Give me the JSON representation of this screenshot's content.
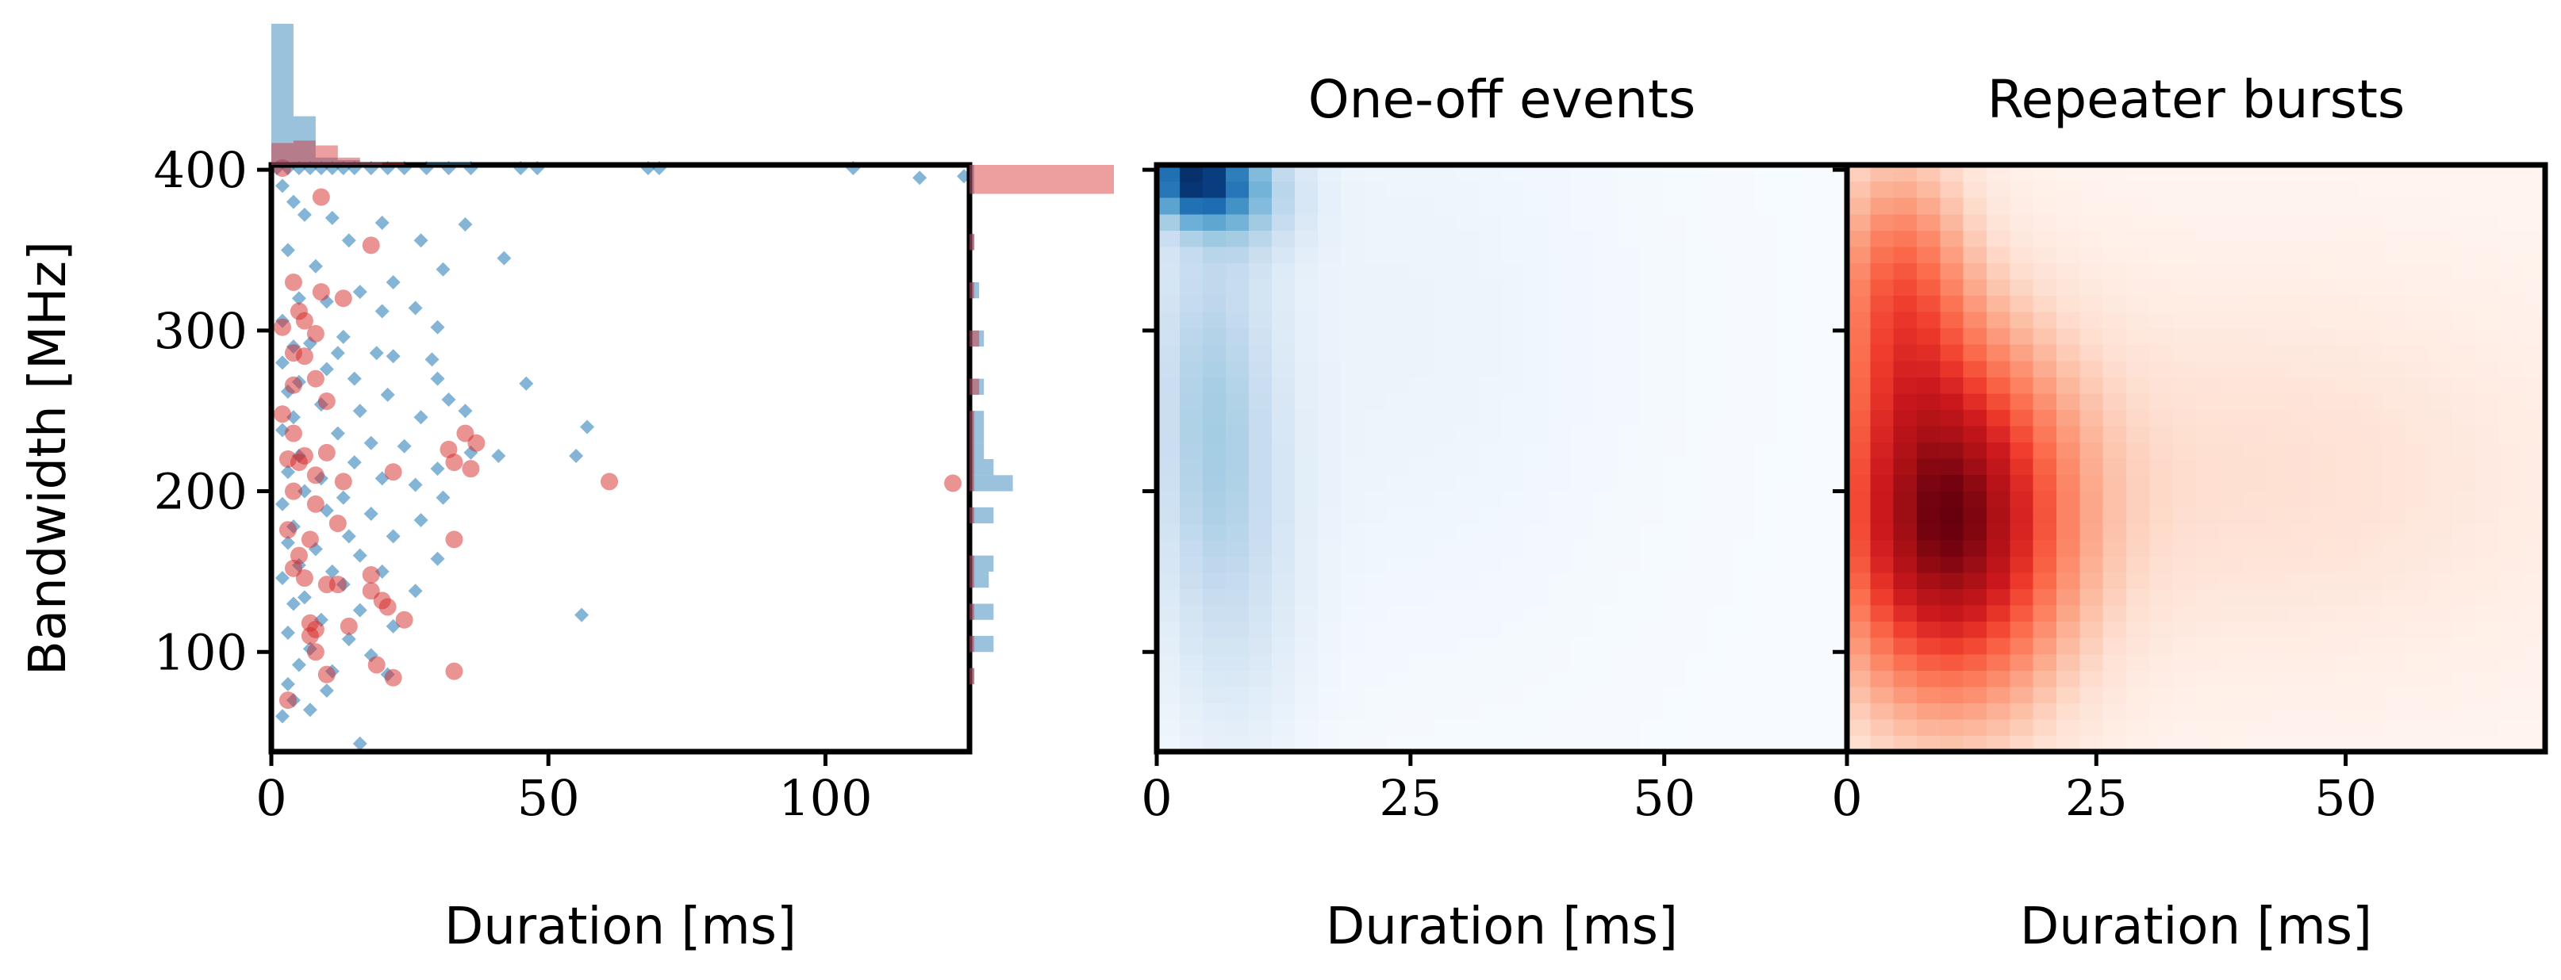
{
  "chart_data": [
    {
      "type": "scatter",
      "xlabel": "Duration [ms]",
      "ylabel": "Bandwidth [MHz]",
      "xlim": [
        0,
        126
      ],
      "ylim": [
        38,
        403
      ],
      "xticks": [
        0,
        50,
        100
      ],
      "yticks": [
        100,
        200,
        300,
        400
      ],
      "colors": {
        "one_off": "#1f77b4",
        "repeater": "#d62728"
      },
      "series": [
        {
          "marker": "diamond",
          "color": "#1f77b4",
          "points": [
            [
              1,
              401
            ],
            [
              3,
              401
            ],
            [
              5,
              401
            ],
            [
              7,
              401
            ],
            [
              9,
              401
            ],
            [
              11,
              401
            ],
            [
              13,
              401
            ],
            [
              15,
              401
            ],
            [
              18,
              401
            ],
            [
              21,
              401
            ],
            [
              24,
              401
            ],
            [
              28,
              401
            ],
            [
              32,
              401
            ],
            [
              36,
              401
            ],
            [
              45,
              401
            ],
            [
              48,
              401
            ],
            [
              68,
              401
            ],
            [
              70,
              401
            ],
            [
              105,
              401
            ],
            [
              117,
              395
            ],
            [
              125,
              396
            ],
            [
              2,
              390
            ],
            [
              4,
              380
            ],
            [
              6,
              372
            ],
            [
              11,
              370
            ],
            [
              20,
              367
            ],
            [
              35,
              366
            ],
            [
              27,
              356
            ],
            [
              14,
              356
            ],
            [
              3,
              350
            ],
            [
              42,
              345
            ],
            [
              8,
              340
            ],
            [
              31,
              338
            ],
            [
              22,
              330
            ],
            [
              16,
              324
            ],
            [
              5,
              320
            ],
            [
              10,
              318
            ],
            [
              26,
              314
            ],
            [
              20,
              312
            ],
            [
              2,
              306
            ],
            [
              30,
              302
            ],
            [
              13,
              296
            ],
            [
              7,
              292
            ],
            [
              4,
              290
            ],
            [
              12,
              286
            ],
            [
              19,
              286
            ],
            [
              22,
              284
            ],
            [
              2,
              280
            ],
            [
              29,
              282
            ],
            [
              10,
              276
            ],
            [
              15,
              270
            ],
            [
              5,
              268
            ],
            [
              30,
              270
            ],
            [
              46,
              267
            ],
            [
              3,
              262
            ],
            [
              21,
              260
            ],
            [
              32,
              257
            ],
            [
              9,
              254
            ],
            [
              16,
              250
            ],
            [
              35,
              250
            ],
            [
              4,
              246
            ],
            [
              27,
              246
            ],
            [
              57,
              240
            ],
            [
              2,
              238
            ],
            [
              12,
              236
            ],
            [
              18,
              230
            ],
            [
              24,
              228
            ],
            [
              36,
              224
            ],
            [
              5,
              222
            ],
            [
              15,
              218
            ],
            [
              30,
              214
            ],
            [
              41,
              222
            ],
            [
              55,
              222
            ],
            [
              3,
              212
            ],
            [
              9,
              208
            ],
            [
              20,
              208
            ],
            [
              26,
              204
            ],
            [
              6,
              200
            ],
            [
              13,
              196
            ],
            [
              31,
              196
            ],
            [
              2,
              192
            ],
            [
              10,
              188
            ],
            [
              18,
              186
            ],
            [
              27,
              182
            ],
            [
              4,
              178
            ],
            [
              14,
              172
            ],
            [
              22,
              172
            ],
            [
              3,
              168
            ],
            [
              8,
              164
            ],
            [
              16,
              160
            ],
            [
              30,
              158
            ],
            [
              5,
              154
            ],
            [
              11,
              150
            ],
            [
              20,
              150
            ],
            [
              2,
              146
            ],
            [
              13,
              142
            ],
            [
              26,
              138
            ],
            [
              6,
              134
            ],
            [
              4,
              130
            ],
            [
              16,
              126
            ],
            [
              56,
              123
            ],
            [
              9,
              120
            ],
            [
              22,
              116
            ],
            [
              3,
              112
            ],
            [
              14,
              108
            ],
            [
              7,
              102
            ],
            [
              18,
              98
            ],
            [
              5,
              92
            ],
            [
              11,
              88
            ],
            [
              21,
              86
            ],
            [
              3,
              80
            ],
            [
              10,
              76
            ],
            [
              4,
              70
            ],
            [
              7,
              64
            ],
            [
              2,
              60
            ],
            [
              16,
              43
            ]
          ]
        },
        {
          "marker": "circle",
          "color": "#d62728",
          "points": [
            [
              2,
              401
            ],
            [
              9,
              383
            ],
            [
              18,
              353
            ],
            [
              4,
              330
            ],
            [
              9,
              324
            ],
            [
              13,
              320
            ],
            [
              5,
              312
            ],
            [
              6,
              306
            ],
            [
              2,
              302
            ],
            [
              8,
              298
            ],
            [
              4,
              286
            ],
            [
              6,
              284
            ],
            [
              8,
              270
            ],
            [
              4,
              266
            ],
            [
              10,
              256
            ],
            [
              2,
              248
            ],
            [
              4,
              236
            ],
            [
              3,
              220
            ],
            [
              6,
              222
            ],
            [
              10,
              224
            ],
            [
              5,
              218
            ],
            [
              8,
              210
            ],
            [
              13,
              206
            ],
            [
              22,
              212
            ],
            [
              32,
              226
            ],
            [
              33,
              218
            ],
            [
              35,
              236
            ],
            [
              36,
              214
            ],
            [
              37,
              230
            ],
            [
              61,
              206
            ],
            [
              123,
              205
            ],
            [
              4,
              200
            ],
            [
              8,
              192
            ],
            [
              12,
              180
            ],
            [
              3,
              176
            ],
            [
              7,
              170
            ],
            [
              33,
              170
            ],
            [
              5,
              160
            ],
            [
              4,
              152
            ],
            [
              10,
              142
            ],
            [
              6,
              146
            ],
            [
              12,
              142
            ],
            [
              18,
              148
            ],
            [
              18,
              138
            ],
            [
              20,
              132
            ],
            [
              21,
              128
            ],
            [
              7,
              118
            ],
            [
              8,
              114
            ],
            [
              14,
              116
            ],
            [
              24,
              120
            ],
            [
              7,
              110
            ],
            [
              8,
              100
            ],
            [
              19,
              92
            ],
            [
              33,
              88
            ],
            [
              10,
              86
            ],
            [
              22,
              84
            ],
            [
              3,
              70
            ]
          ]
        }
      ]
    },
    {
      "type": "bar",
      "orientation": "vertical",
      "bins_x": [
        0,
        4,
        8,
        12,
        16,
        20,
        24,
        28,
        32,
        36,
        40,
        44
      ],
      "series": [
        {
          "color": "#1f77b4",
          "counts": [
            58,
            20,
            3,
            2,
            1,
            0,
            0,
            1,
            1,
            0,
            0,
            0
          ]
        },
        {
          "color": "#d62728",
          "counts": [
            9,
            10,
            8,
            3,
            1,
            1,
            0,
            0,
            0,
            0,
            0,
            0
          ]
        }
      ]
    },
    {
      "type": "bar",
      "orientation": "horizontal",
      "bins_y": [
        [
          385,
          403
        ],
        [
          350,
          360
        ],
        [
          320,
          330
        ],
        [
          290,
          300
        ],
        [
          260,
          270
        ],
        [
          240,
          250
        ],
        [
          230,
          240
        ],
        [
          220,
          230
        ],
        [
          210,
          220
        ],
        [
          200,
          210
        ],
        [
          180,
          190
        ],
        [
          150,
          160
        ],
        [
          140,
          150
        ],
        [
          120,
          130
        ],
        [
          100,
          110
        ],
        [
          80,
          90
        ]
      ],
      "series": [
        {
          "color": "#1f77b4",
          "counts": [
            1,
            1,
            2,
            3,
            3,
            3,
            3,
            3,
            5,
            9,
            5,
            5,
            4,
            5,
            5,
            1
          ]
        },
        {
          "color": "#d62728",
          "counts": [
            30,
            1,
            1,
            2,
            2,
            1,
            1,
            1,
            1,
            1,
            1,
            1,
            1,
            1,
            1,
            1
          ]
        }
      ]
    },
    {
      "type": "heatmap",
      "title": "One-off events",
      "xlabel": "Duration [ms]",
      "xlim": [
        0,
        68
      ],
      "ylim": [
        38,
        403
      ],
      "xticks": [
        0,
        25,
        50
      ],
      "colormap": "Blues",
      "grid": [
        30,
        36
      ],
      "peak": [
        3.5,
        395
      ],
      "density": [
        {
          "x0": 3.5,
          "sx": 3.5,
          "y0": 395,
          "sy": 18,
          "w": 1.0
        },
        {
          "x0": 9,
          "sx": 4,
          "y0": 385,
          "sy": 25,
          "w": 0.35
        },
        {
          "x0": 5,
          "sx": 4.5,
          "y0": 260,
          "sy": 95,
          "w": 0.33
        },
        {
          "x0": 8,
          "sx": 5,
          "y0": 150,
          "sy": 90,
          "w": 0.16
        },
        {
          "x0": 24,
          "sx": 16,
          "y0": 300,
          "sy": 140,
          "w": 0.07
        }
      ]
    },
    {
      "type": "heatmap",
      "title": "Repeater bursts",
      "xlabel": "Duration [ms]",
      "xlim": [
        0,
        70
      ],
      "ylim": [
        38,
        403
      ],
      "xticks": [
        0,
        25,
        50
      ],
      "colormap": "Reds",
      "grid": [
        30,
        36
      ],
      "peak": [
        9,
        180
      ],
      "density": [
        {
          "x0": 10,
          "sx": 8.5,
          "y0": 180,
          "sy": 80,
          "w": 1.0
        },
        {
          "x0": 5,
          "sx": 5,
          "y0": 330,
          "sy": 60,
          "w": 0.45
        },
        {
          "x0": 40,
          "sx": 22,
          "y0": 210,
          "sy": 80,
          "w": 0.13
        }
      ]
    }
  ]
}
